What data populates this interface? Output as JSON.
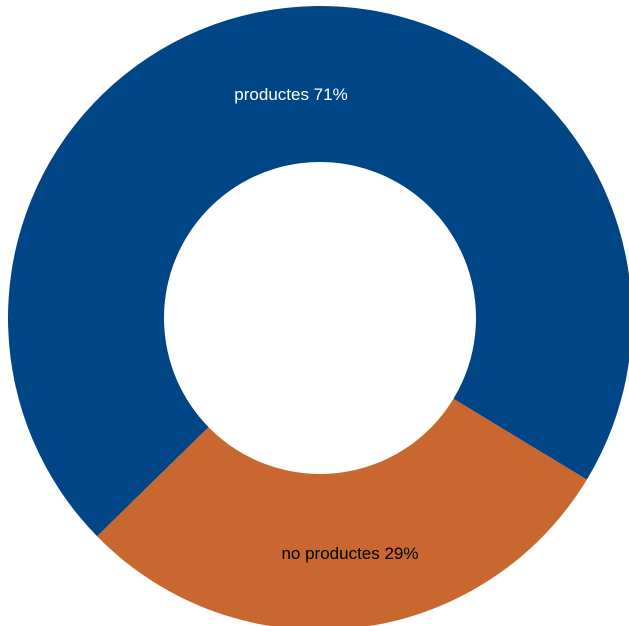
{
  "chart_data": {
    "type": "pie",
    "variant": "donut",
    "categories": [
      "productes",
      "no productes"
    ],
    "values": [
      71,
      29
    ],
    "unit": "%",
    "labels": [
      "productes 71%",
      "no productes 29%"
    ],
    "colors": [
      "#004586",
      "#c96731"
    ],
    "label_colors": [
      "#ffffff",
      "#000000"
    ],
    "title": "",
    "legend": "none"
  }
}
